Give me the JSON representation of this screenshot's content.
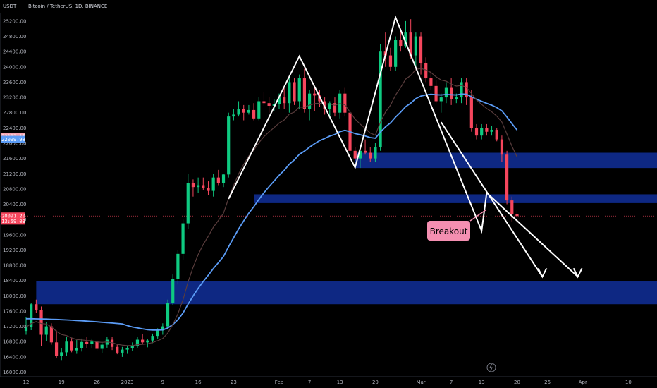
{
  "header": {
    "currency": "USDT",
    "title": "Bitcoin / TetherUS, 1D, BINANCE"
  },
  "colors": {
    "background": "#000000",
    "up_candle": "#0ecb81",
    "down_candle": "#f6465d",
    "zone": "#0f2a8a",
    "ema_fast": "#5a3d3d",
    "ema_slow": "#5b9cf6",
    "pattern_line": "#ffffff",
    "callout_bg": "#f48fb1"
  },
  "annotations": {
    "breakout_label": "Breakout"
  },
  "chart_data": {
    "type": "candlestick",
    "ylim": [
      15880,
      25420
    ],
    "y_ticks": [
      "16000.00",
      "16400.00",
      "16800.00",
      "17200.00",
      "17600.00",
      "18000.00",
      "18400.00",
      "18800.00",
      "19200.00",
      "19600.00",
      "20000.00",
      "20400.00",
      "20800.00",
      "21200.00",
      "21600.00",
      "22000.00",
      "22400.00",
      "22800.00",
      "23200.00",
      "23600.00",
      "24000.00",
      "24400.00",
      "24800.00",
      "25200.00"
    ],
    "x_ticks": [
      "12",
      "19",
      "26",
      "2023",
      "9",
      "16",
      "23",
      "Feb",
      "7",
      "13",
      "20",
      "Mar",
      "7",
      "13",
      "20",
      "26",
      "Apr",
      "10"
    ],
    "x_tick_days": [
      0,
      7,
      14,
      20,
      27,
      34,
      41,
      50,
      56,
      62,
      69,
      78,
      84,
      90,
      97,
      103,
      110,
      119
    ],
    "price_badges": [
      {
        "value": "22182.15",
        "color": "#f6a5b0",
        "text_color": "#000000"
      },
      {
        "value": "22099.98",
        "color": "#5b9cf6",
        "text_color": "#000000"
      },
      {
        "value": "20091.20",
        "color": "#f6465d",
        "text_color": "#ffffff"
      },
      {
        "value": "13:59:03",
        "color": "#f6465d",
        "text_color": "#ffffff"
      }
    ],
    "price_badge_levels": [
      22182.15,
      22099.98,
      20091.2,
      19960
    ],
    "last_price": 20091.2,
    "zones": [
      {
        "from_day": 45,
        "to_day": 150,
        "low": 20430,
        "high": 20660
      },
      {
        "from_day": 65,
        "to_day": 150,
        "low": 21350,
        "high": 21750
      },
      {
        "from_day": 2,
        "to_day": 150,
        "low": 17780,
        "high": 18380
      }
    ],
    "candles_ohlc": [
      [
        17080,
        17440,
        16980,
        17180
      ],
      [
        17180,
        17820,
        17100,
        17780
      ],
      [
        17780,
        17900,
        17560,
        17620
      ],
      [
        17620,
        17720,
        16680,
        16980
      ],
      [
        16980,
        17320,
        16820,
        17200
      ],
      [
        17200,
        17280,
        16720,
        16780
      ],
      [
        16780,
        17090,
        16360,
        16430
      ],
      [
        16430,
        16620,
        16300,
        16520
      ],
      [
        16520,
        16930,
        16420,
        16800
      ],
      [
        16800,
        16900,
        16520,
        16570
      ],
      [
        16570,
        16840,
        16480,
        16620
      ],
      [
        16620,
        16880,
        16540,
        16790
      ],
      [
        16790,
        16920,
        16620,
        16740
      ],
      [
        16740,
        16880,
        16620,
        16800
      ],
      [
        16800,
        16840,
        16550,
        16610
      ],
      [
        16610,
        16790,
        16500,
        16720
      ],
      [
        16720,
        16930,
        16640,
        16850
      ],
      [
        16850,
        16920,
        16580,
        16660
      ],
      [
        16660,
        16720,
        16470,
        16510
      ],
      [
        16510,
        16660,
        16400,
        16590
      ],
      [
        16590,
        16700,
        16480,
        16620
      ],
      [
        16620,
        16780,
        16550,
        16690
      ],
      [
        16690,
        16920,
        16640,
        16850
      ],
      [
        16850,
        16990,
        16720,
        16780
      ],
      [
        16780,
        16870,
        16650,
        16830
      ],
      [
        16830,
        17010,
        16760,
        16950
      ],
      [
        16950,
        17150,
        16880,
        17090
      ],
      [
        17090,
        17280,
        16980,
        17200
      ],
      [
        17200,
        17900,
        17120,
        17820
      ],
      [
        17820,
        18560,
        17760,
        18450
      ],
      [
        18450,
        19200,
        18300,
        19100
      ],
      [
        19100,
        20000,
        18950,
        19900
      ],
      [
        19900,
        21200,
        19750,
        20950
      ],
      [
        20950,
        21050,
        20600,
        20850
      ],
      [
        20850,
        21100,
        20700,
        20900
      ],
      [
        20900,
        21100,
        20780,
        20820
      ],
      [
        20820,
        21000,
        20650,
        20750
      ],
      [
        20750,
        21200,
        20600,
        21100
      ],
      [
        21100,
        21300,
        20900,
        20950
      ],
      [
        20950,
        21200,
        20850,
        21180
      ],
      [
        21180,
        22800,
        21100,
        22700
      ],
      [
        22700,
        22900,
        22600,
        22750
      ],
      [
        22750,
        23100,
        22700,
        22900
      ],
      [
        22900,
        23000,
        22600,
        22800
      ],
      [
        22800,
        23000,
        22750,
        22870
      ],
      [
        22870,
        23050,
        22600,
        22650
      ],
      [
        22650,
        23200,
        22600,
        23100
      ],
      [
        23100,
        23350,
        22980,
        23050
      ],
      [
        23050,
        23200,
        22800,
        22980
      ],
      [
        22980,
        23150,
        22850,
        23020
      ],
      [
        23020,
        23300,
        22900,
        23200
      ],
      [
        23200,
        23450,
        22900,
        23050
      ],
      [
        23050,
        23700,
        22800,
        23600
      ],
      [
        23600,
        23700,
        23000,
        23100
      ],
      [
        23100,
        23800,
        22900,
        23700
      ],
      [
        23700,
        23950,
        22800,
        22900
      ],
      [
        22900,
        23400,
        22600,
        23300
      ],
      [
        23300,
        23500,
        22850,
        23250
      ],
      [
        23250,
        23400,
        22950,
        23100
      ],
      [
        23100,
        23200,
        22750,
        22900
      ],
      [
        22900,
        23100,
        22700,
        23050
      ],
      [
        23050,
        23200,
        22700,
        22800
      ],
      [
        22800,
        23400,
        22650,
        23300
      ],
      [
        23300,
        23450,
        22700,
        22800
      ],
      [
        22800,
        22850,
        21650,
        21800
      ],
      [
        21800,
        21900,
        21550,
        21600
      ],
      [
        21600,
        21850,
        21350,
        21800
      ],
      [
        21800,
        22100,
        21700,
        21750
      ],
      [
        21750,
        21900,
        21500,
        21600
      ],
      [
        21600,
        22000,
        21500,
        21900
      ],
      [
        21900,
        24600,
        21800,
        24400
      ],
      [
        24400,
        24900,
        24000,
        24300
      ],
      [
        24300,
        24500,
        23900,
        24000
      ],
      [
        24000,
        24800,
        23900,
        24700
      ],
      [
        24700,
        25000,
        24400,
        24550
      ],
      [
        24550,
        25200,
        24500,
        24900
      ],
      [
        24900,
        25250,
        24200,
        24300
      ],
      [
        24300,
        24900,
        24000,
        24800
      ],
      [
        24800,
        24900,
        23800,
        24100
      ],
      [
        24100,
        24250,
        23600,
        23700
      ],
      [
        23700,
        23900,
        23400,
        23500
      ],
      [
        23500,
        23650,
        23050,
        23100
      ],
      [
        23100,
        23300,
        22800,
        23200
      ],
      [
        23200,
        23600,
        23050,
        23450
      ],
      [
        23450,
        23700,
        23000,
        23150
      ],
      [
        23150,
        23300,
        23050,
        23200
      ],
      [
        23200,
        23700,
        23050,
        23600
      ],
      [
        23600,
        23700,
        23000,
        23200
      ],
      [
        23200,
        23400,
        22300,
        22400
      ],
      [
        22400,
        22500,
        22100,
        22200
      ],
      [
        22200,
        22500,
        22100,
        22400
      ],
      [
        22400,
        22500,
        22200,
        22300
      ],
      [
        22300,
        22450,
        22200,
        22350
      ],
      [
        22350,
        22400,
        22050,
        22100
      ],
      [
        22100,
        22200,
        21500,
        21700
      ],
      [
        21700,
        21800,
        20400,
        20500
      ],
      [
        20500,
        20600,
        19950,
        20150
      ],
      [
        20150,
        20250,
        19900,
        20090
      ]
    ]
  }
}
